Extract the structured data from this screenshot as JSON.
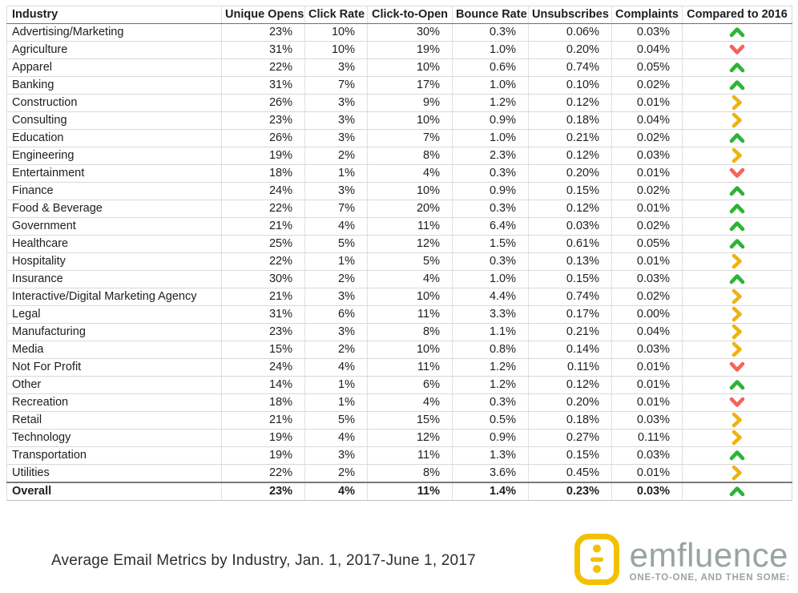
{
  "chart_data": {
    "type": "table",
    "title": "Average Email Metrics by Industry, Jan. 1, 2017-June 1, 2017",
    "columns": [
      "Industry",
      "Unique Opens",
      "Click Rate",
      "Click-to-Open",
      "Bounce Rate",
      "Unsubscribes",
      "Complaints",
      "Compared to 2016"
    ],
    "rows": [
      {
        "industry": "Advertising/Marketing",
        "values": [
          "23%",
          "10%",
          "30%",
          "0.3%",
          "0.06%",
          "0.03%"
        ],
        "compared_to_2016": "up"
      },
      {
        "industry": "Agriculture",
        "values": [
          "31%",
          "10%",
          "19%",
          "1.0%",
          "0.20%",
          "0.04%"
        ],
        "compared_to_2016": "down"
      },
      {
        "industry": "Apparel",
        "values": [
          "22%",
          "3%",
          "10%",
          "0.6%",
          "0.74%",
          "0.05%"
        ],
        "compared_to_2016": "up"
      },
      {
        "industry": "Banking",
        "values": [
          "31%",
          "7%",
          "17%",
          "1.0%",
          "0.10%",
          "0.02%"
        ],
        "compared_to_2016": "up"
      },
      {
        "industry": "Construction",
        "values": [
          "26%",
          "3%",
          "9%",
          "1.2%",
          "0.12%",
          "0.01%"
        ],
        "compared_to_2016": "right"
      },
      {
        "industry": "Consulting",
        "values": [
          "23%",
          "3%",
          "10%",
          "0.9%",
          "0.18%",
          "0.04%"
        ],
        "compared_to_2016": "right"
      },
      {
        "industry": "Education",
        "values": [
          "26%",
          "3%",
          "7%",
          "1.0%",
          "0.21%",
          "0.02%"
        ],
        "compared_to_2016": "up"
      },
      {
        "industry": "Engineering",
        "values": [
          "19%",
          "2%",
          "8%",
          "2.3%",
          "0.12%",
          "0.03%"
        ],
        "compared_to_2016": "right"
      },
      {
        "industry": "Entertainment",
        "values": [
          "18%",
          "1%",
          "4%",
          "0.3%",
          "0.20%",
          "0.01%"
        ],
        "compared_to_2016": "down"
      },
      {
        "industry": "Finance",
        "values": [
          "24%",
          "3%",
          "10%",
          "0.9%",
          "0.15%",
          "0.02%"
        ],
        "compared_to_2016": "up"
      },
      {
        "industry": "Food & Beverage",
        "values": [
          "22%",
          "7%",
          "20%",
          "0.3%",
          "0.12%",
          "0.01%"
        ],
        "compared_to_2016": "up"
      },
      {
        "industry": "Government",
        "values": [
          "21%",
          "4%",
          "11%",
          "6.4%",
          "0.03%",
          "0.02%"
        ],
        "compared_to_2016": "up"
      },
      {
        "industry": "Healthcare",
        "values": [
          "25%",
          "5%",
          "12%",
          "1.5%",
          "0.61%",
          "0.05%"
        ],
        "compared_to_2016": "up"
      },
      {
        "industry": "Hospitality",
        "values": [
          "22%",
          "1%",
          "5%",
          "0.3%",
          "0.13%",
          "0.01%"
        ],
        "compared_to_2016": "right"
      },
      {
        "industry": "Insurance",
        "values": [
          "30%",
          "2%",
          "4%",
          "1.0%",
          "0.15%",
          "0.03%"
        ],
        "compared_to_2016": "up"
      },
      {
        "industry": "Interactive/Digital Marketing Agency",
        "values": [
          "21%",
          "3%",
          "10%",
          "4.4%",
          "0.74%",
          "0.02%"
        ],
        "compared_to_2016": "right"
      },
      {
        "industry": "Legal",
        "values": [
          "31%",
          "6%",
          "11%",
          "3.3%",
          "0.17%",
          "0.00%"
        ],
        "compared_to_2016": "right"
      },
      {
        "industry": "Manufacturing",
        "values": [
          "23%",
          "3%",
          "8%",
          "1.1%",
          "0.21%",
          "0.04%"
        ],
        "compared_to_2016": "right"
      },
      {
        "industry": "Media",
        "values": [
          "15%",
          "2%",
          "10%",
          "0.8%",
          "0.14%",
          "0.03%"
        ],
        "compared_to_2016": "right"
      },
      {
        "industry": "Not For Profit",
        "values": [
          "24%",
          "4%",
          "11%",
          "1.2%",
          "0.11%",
          "0.01%"
        ],
        "compared_to_2016": "down"
      },
      {
        "industry": "Other",
        "values": [
          "14%",
          "1%",
          "6%",
          "1.2%",
          "0.12%",
          "0.01%"
        ],
        "compared_to_2016": "up"
      },
      {
        "industry": "Recreation",
        "values": [
          "18%",
          "1%",
          "4%",
          "0.3%",
          "0.20%",
          "0.01%"
        ],
        "compared_to_2016": "down"
      },
      {
        "industry": "Retail",
        "values": [
          "21%",
          "5%",
          "15%",
          "0.5%",
          "0.18%",
          "0.03%"
        ],
        "compared_to_2016": "right"
      },
      {
        "industry": "Technology",
        "values": [
          "19%",
          "4%",
          "12%",
          "0.9%",
          "0.27%",
          "0.11%"
        ],
        "compared_to_2016": "right"
      },
      {
        "industry": "Transportation",
        "values": [
          "19%",
          "3%",
          "11%",
          "1.3%",
          "0.15%",
          "0.03%"
        ],
        "compared_to_2016": "up"
      },
      {
        "industry": "Utilities",
        "values": [
          "22%",
          "2%",
          "8%",
          "3.6%",
          "0.45%",
          "0.01%"
        ],
        "compared_to_2016": "right"
      }
    ],
    "overall_row": {
      "industry": "Overall",
      "values": [
        "23%",
        "4%",
        "11%",
        "1.4%",
        "0.23%",
        "0.03%"
      ],
      "compared_to_2016": "up"
    }
  },
  "trend_colors": {
    "up": "#2fb335",
    "down": "#f4635c",
    "right": "#eeb211"
  },
  "trend_icons": {
    "up": "chevron-up-icon",
    "down": "chevron-down-icon",
    "right": "chevron-right-icon"
  },
  "logo": {
    "name": "emfluence",
    "tagline": "ONE-TO-ONE, AND THEN SOME:",
    "brand_yellow": "#f2c100",
    "text_gray": "#9aa3a4"
  }
}
